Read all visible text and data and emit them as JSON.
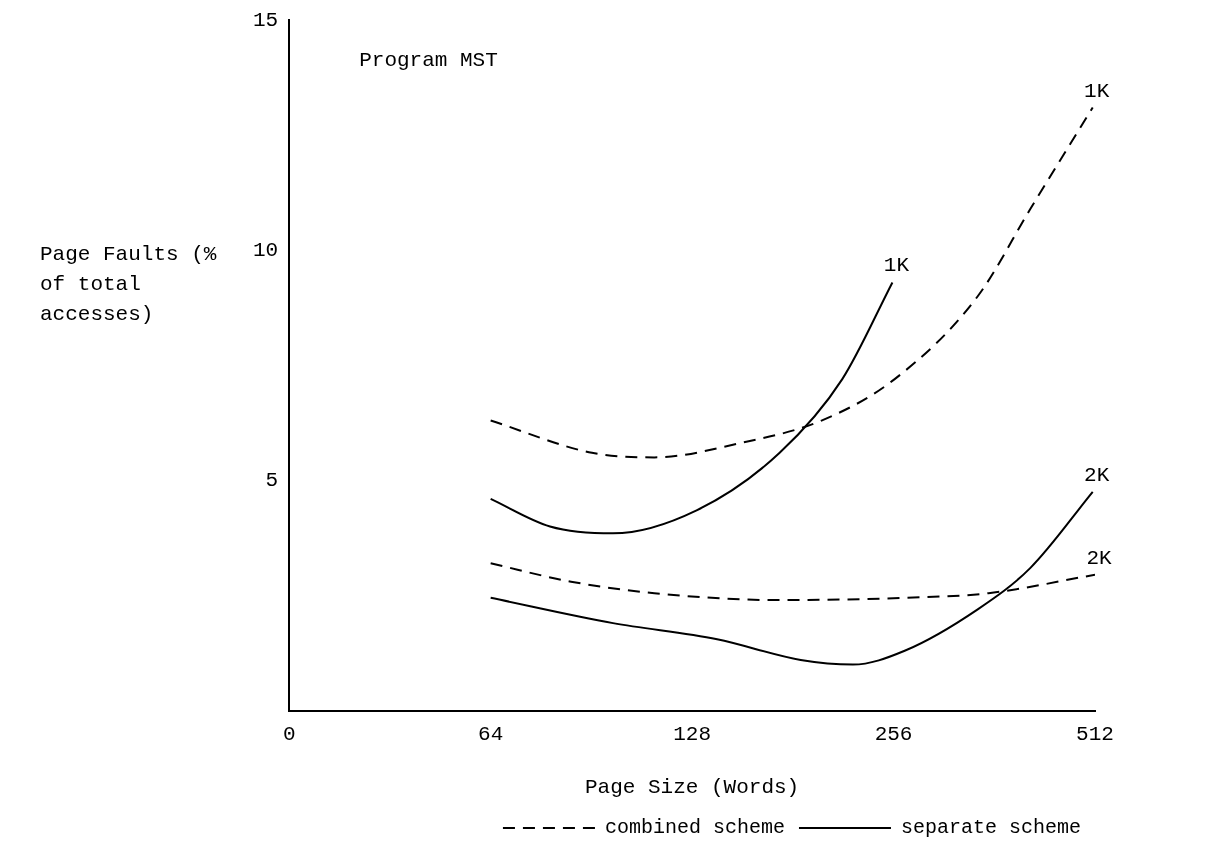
{
  "chart_data": {
    "type": "line",
    "title": "Program MST",
    "xlabel": "Page Size (Words)",
    "ylabel": "Page Faults (% of total accesses)",
    "log": "x",
    "xlim": [
      0,
      512
    ],
    "xticks": [
      0,
      64,
      128,
      256,
      512
    ],
    "ylim": [
      0,
      15
    ],
    "yticks": [
      5,
      10,
      15
    ],
    "grid": false,
    "legend": "bottom right",
    "marker": "none",
    "series": [
      {
        "name": "combined scheme",
        "color": "#000000",
        "line_style": "dashed",
        "x": [
          64,
          90.7,
          112.4,
          150,
          199.8,
          257,
          342,
          410,
          508
        ],
        "values": [
          6.3,
          5.6,
          5.5,
          5.8,
          6.3,
          7.2,
          9.0,
          10.9,
          13.1
        ]
      },
      {
        "name": "separate scheme",
        "color": "#000000",
        "line_style": "solid",
        "x": [
          64,
          78.5,
          97.5,
          130,
          173,
          214.6,
          255
        ],
        "values": [
          4.6,
          4.0,
          3.85,
          4.35,
          5.6,
          7.2,
          9.3
        ]
      },
      {
        "color": "#000000",
        "line_style": "dashed",
        "x": [
          64,
          84.4,
          112.4,
          173,
          266,
          355,
          512
        ],
        "values": [
          3.2,
          2.8,
          2.55,
          2.4,
          2.45,
          2.55,
          2.95
        ]
      },
      {
        "color": "#000000",
        "line_style": "solid",
        "x": [
          64,
          97.5,
          139.5,
          186,
          222.6,
          266,
          342,
          410,
          508
        ],
        "values": [
          2.45,
          1.9,
          1.55,
          1.1,
          1.0,
          1.3,
          2.2,
          3.1,
          4.75
        ]
      }
    ],
    "annotations": [
      {
        "text": "1K",
        "x": 508,
        "y": 13.1
      },
      {
        "text": "1K",
        "x": 255,
        "y": 9.3
      },
      {
        "text": "2K",
        "x": 508,
        "y": 4.75
      },
      {
        "text": "2K",
        "x": 512,
        "y": 2.95
      }
    ]
  }
}
